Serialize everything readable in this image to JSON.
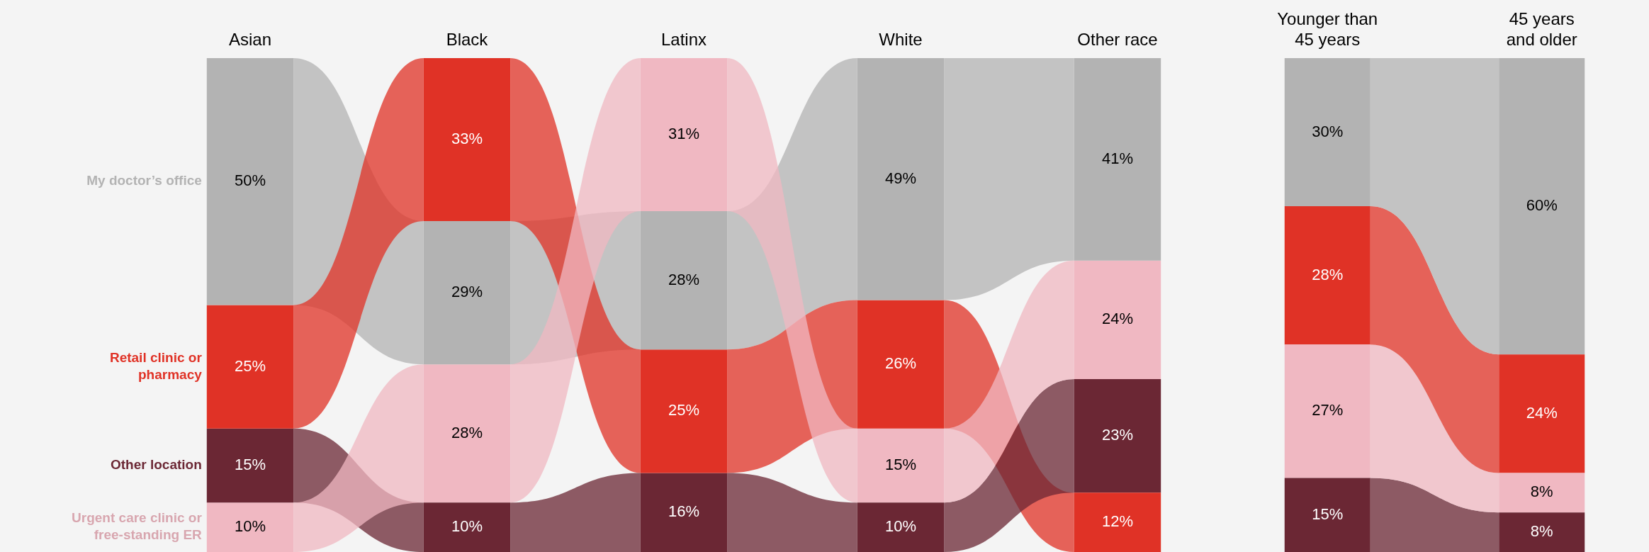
{
  "chart_data": [
    {
      "type": "bar",
      "stacked": true,
      "categories": [
        "Asian",
        "Black",
        "Latinx",
        "White",
        "Other race"
      ],
      "ylim": [
        0,
        100
      ],
      "tick_labels": "x",
      "series": [
        {
          "name": "My doctor’s office",
          "color": "#b3b3b3",
          "values": [
            50,
            29,
            28,
            49,
            41
          ],
          "value_labels": [
            "50%",
            "29%",
            "28%",
            "49%",
            "41%"
          ]
        },
        {
          "name": "Retail clinic or pharmacy",
          "color": "#e03226",
          "values": [
            25,
            33,
            25,
            26,
            12
          ],
          "value_labels": [
            "25%",
            "33%",
            "25%",
            "26%",
            "12%"
          ]
        },
        {
          "name": "Other location",
          "color": "#6b2734",
          "values": [
            15,
            10,
            16,
            10,
            23
          ],
          "value_labels": [
            "15%",
            "10%",
            "16%",
            "10%",
            "23%"
          ]
        },
        {
          "name": "Urgent care clinic or free-standing ER",
          "color": "#f0b8c2",
          "values": [
            10,
            28,
            31,
            15,
            24
          ],
          "value_labels": [
            "10%",
            "28%",
            "31%",
            "15%",
            "24%"
          ]
        }
      ]
    },
    {
      "type": "bar",
      "stacked": true,
      "categories": [
        "Younger than 45 years",
        "45 years and older"
      ],
      "ylim": [
        0,
        100
      ],
      "tick_labels": "x",
      "series": [
        {
          "color": "#6b2734",
          "values": [
            15,
            8
          ],
          "value_labels": [
            "15%",
            "8%"
          ]
        },
        {
          "color": "#f0b8c2",
          "values": [
            27,
            8
          ],
          "value_labels": [
            "27%",
            "8%"
          ]
        },
        {
          "color": "#e03226",
          "values": [
            28,
            24
          ],
          "value_labels": [
            "28%",
            "24%"
          ]
        },
        {
          "color": "#b3b3b3",
          "values": [
            30,
            60
          ],
          "value_labels": [
            "30%",
            "60%"
          ]
        }
      ]
    }
  ]
}
